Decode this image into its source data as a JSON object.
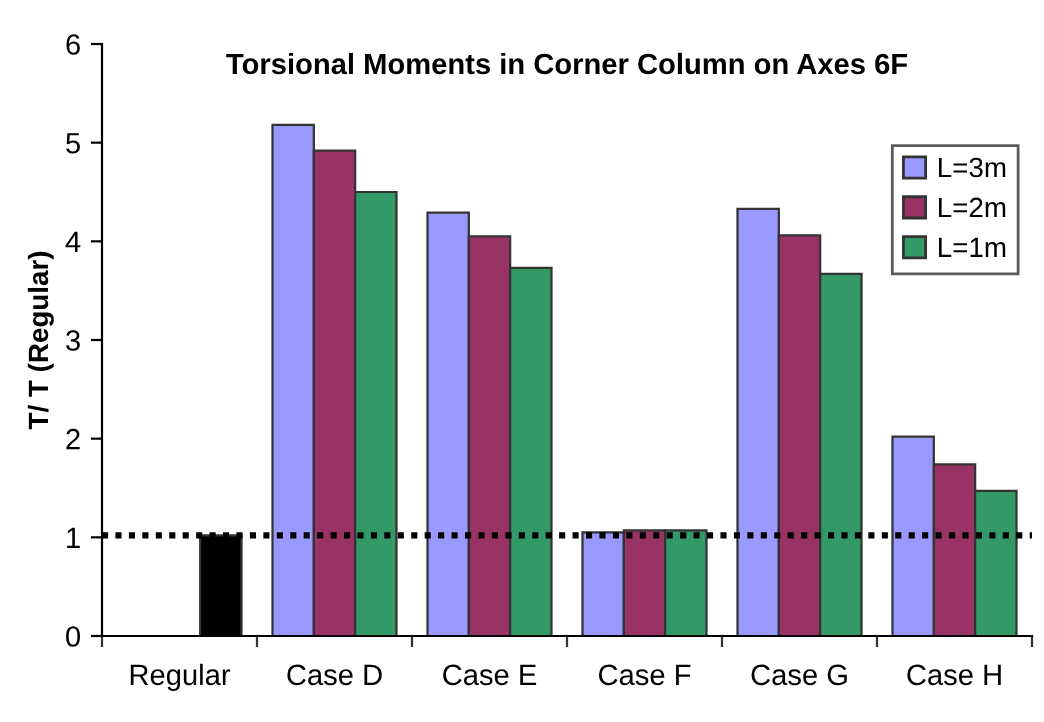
{
  "chart_data": {
    "type": "bar",
    "title": "Torsional Moments in Corner Column on Axes 6F",
    "ylabel": "T/ T (Regular)",
    "categories": [
      "Regular",
      "Case D",
      "Case E",
      "Case F",
      "Case G",
      "Case H"
    ],
    "series": [
      {
        "name": "L=3m",
        "color": "#9999ff",
        "values": [
          null,
          5.18,
          4.29,
          1.05,
          4.33,
          2.02
        ]
      },
      {
        "name": "L=2m",
        "color": "#993366",
        "values": [
          null,
          4.92,
          4.05,
          1.07,
          4.06,
          1.74
        ]
      },
      {
        "name": "L=1m",
        "color": "#339966",
        "colors": [
          "#000000",
          "#339966",
          "#339966",
          "#339966",
          "#339966",
          "#339966"
        ],
        "values": [
          1.02,
          4.5,
          3.73,
          1.07,
          3.67,
          1.47
        ]
      }
    ],
    "ylim": [
      0,
      6
    ],
    "yticks": [
      0,
      1,
      2,
      3,
      4,
      5,
      6
    ],
    "grid": false,
    "legend": "right",
    "ref_lines": [
      {
        "axis": "y",
        "value": 1.02,
        "color": "#000000",
        "line_style": "dotted"
      }
    ]
  }
}
